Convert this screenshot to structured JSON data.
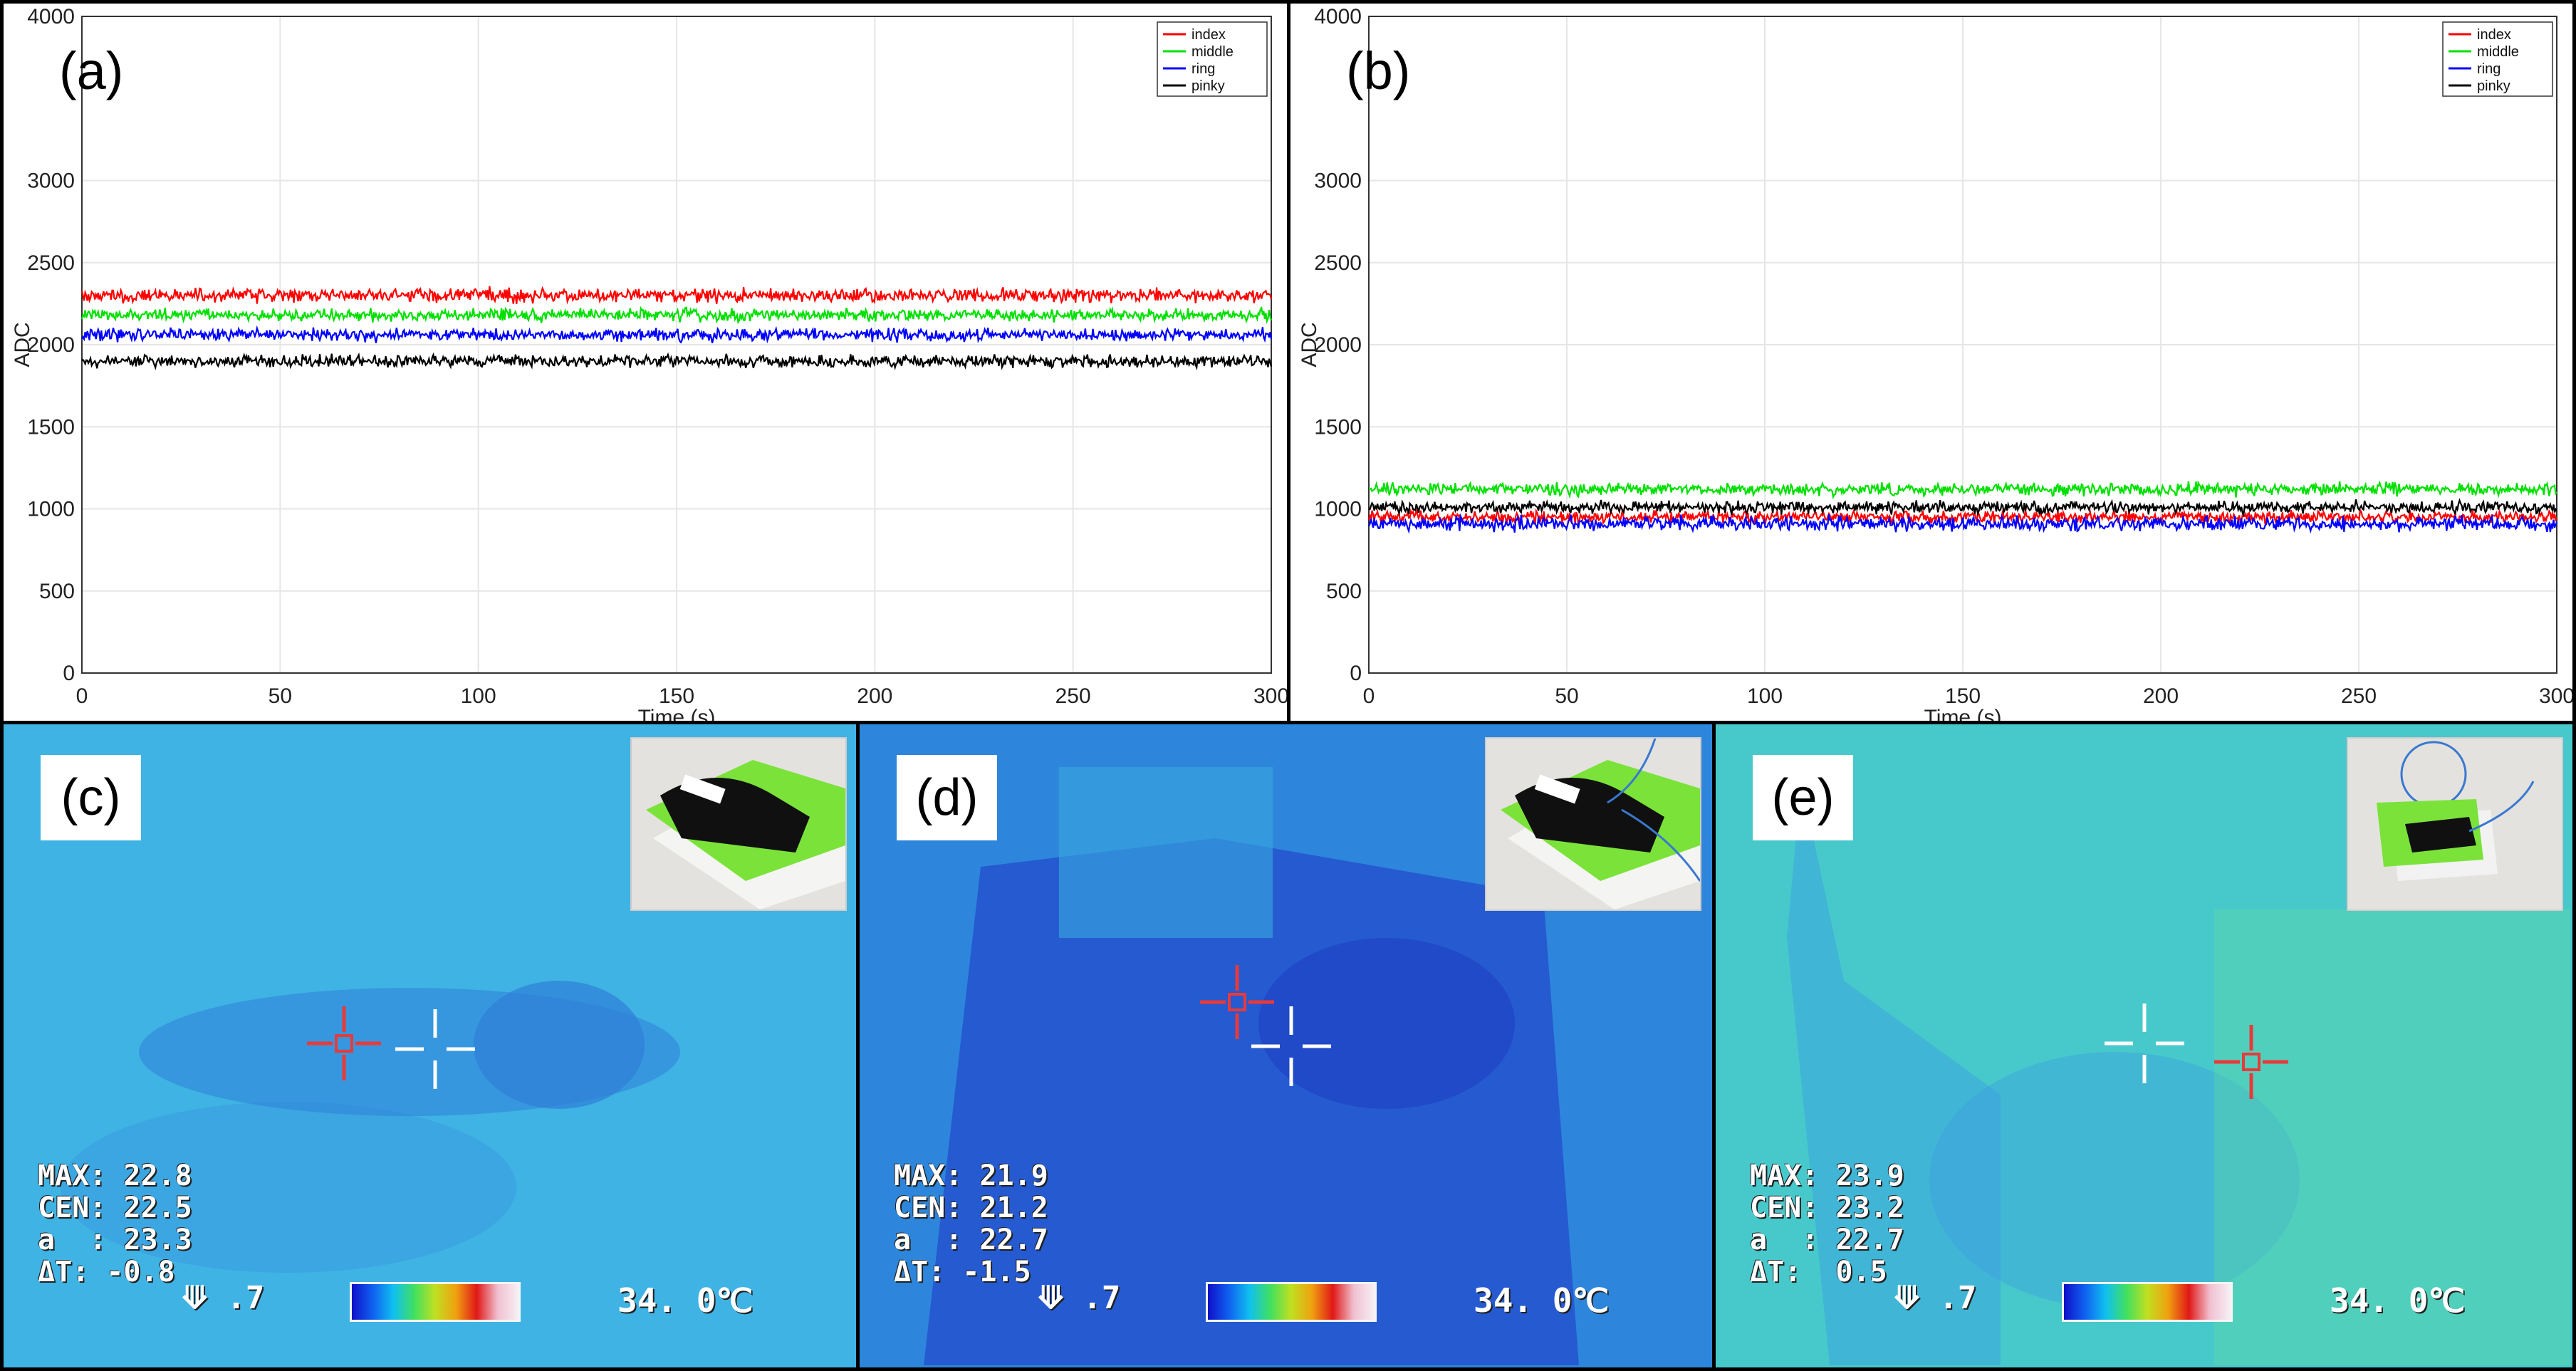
{
  "chart_data": [
    {
      "type": "line",
      "panel_label": "(a)",
      "xlabel": "Time (s)",
      "ylabel": "ADC",
      "xlim": [
        0,
        300
      ],
      "ylim": [
        0,
        4000
      ],
      "xticks": [
        "0",
        "50",
        "100",
        "150",
        "200",
        "250",
        "300"
      ],
      "yticks": [
        "0",
        "500",
        "1000",
        "1500",
        "2000",
        "2500",
        "3000",
        "4000"
      ],
      "grid": true,
      "legend_position": "top-right",
      "series": [
        {
          "name": "index",
          "color": "#ff0000",
          "mean": 2300,
          "noise": 25
        },
        {
          "name": "middle",
          "color": "#00e000",
          "mean": 2180,
          "noise": 22
        },
        {
          "name": "ring",
          "color": "#0000ff",
          "mean": 2060,
          "noise": 22
        },
        {
          "name": "pinky",
          "color": "#000000",
          "mean": 1900,
          "noise": 22
        }
      ]
    },
    {
      "type": "line",
      "panel_label": "(b)",
      "xlabel": "Time (s)",
      "ylabel": "ADC",
      "xlim": [
        0,
        300
      ],
      "ylim": [
        0,
        4000
      ],
      "xticks": [
        "0",
        "50",
        "100",
        "150",
        "200",
        "250",
        "300"
      ],
      "yticks": [
        "0",
        "500",
        "1000",
        "1500",
        "2000",
        "2500",
        "3000",
        "4000"
      ],
      "grid": true,
      "legend_position": "top-right",
      "series": [
        {
          "name": "index",
          "color": "#ff0000",
          "mean": 950,
          "noise": 22
        },
        {
          "name": "middle",
          "color": "#00e000",
          "mean": 1120,
          "noise": 22
        },
        {
          "name": "ring",
          "color": "#0000ff",
          "mean": 910,
          "noise": 25
        },
        {
          "name": "pinky",
          "color": "#000000",
          "mean": 1010,
          "noise": 22
        }
      ]
    }
  ],
  "thermal_panels": [
    {
      "label": "(c)",
      "max": "MAX: 22.8",
      "cen": "CEN: 22.5",
      "a": "a  : 23.3",
      "dt": "ΔT: -0.8",
      "emis": ".7",
      "scale": "34. 0℃",
      "tone": "cool"
    },
    {
      "label": "(d)",
      "max": "MAX: 21.9",
      "cen": "CEN: 21.2",
      "a": "a  : 22.7",
      "dt": "ΔT: -1.5",
      "emis": ".7",
      "scale": "34. 0℃",
      "tone": "cold"
    },
    {
      "label": "(e)",
      "max": "MAX: 23.9",
      "cen": "CEN: 23.2",
      "a": "a  : 22.7",
      "dt": "ΔT:  0.5",
      "emis": ".7",
      "scale": "34. 0℃",
      "tone": "warm"
    }
  ],
  "colors": {
    "thermal_cool": "#3fb0e0",
    "thermal_cold": "#2f74d8",
    "thermal_warm": "#46c8c8",
    "glove": "#101010",
    "pad": "#7be23a"
  }
}
